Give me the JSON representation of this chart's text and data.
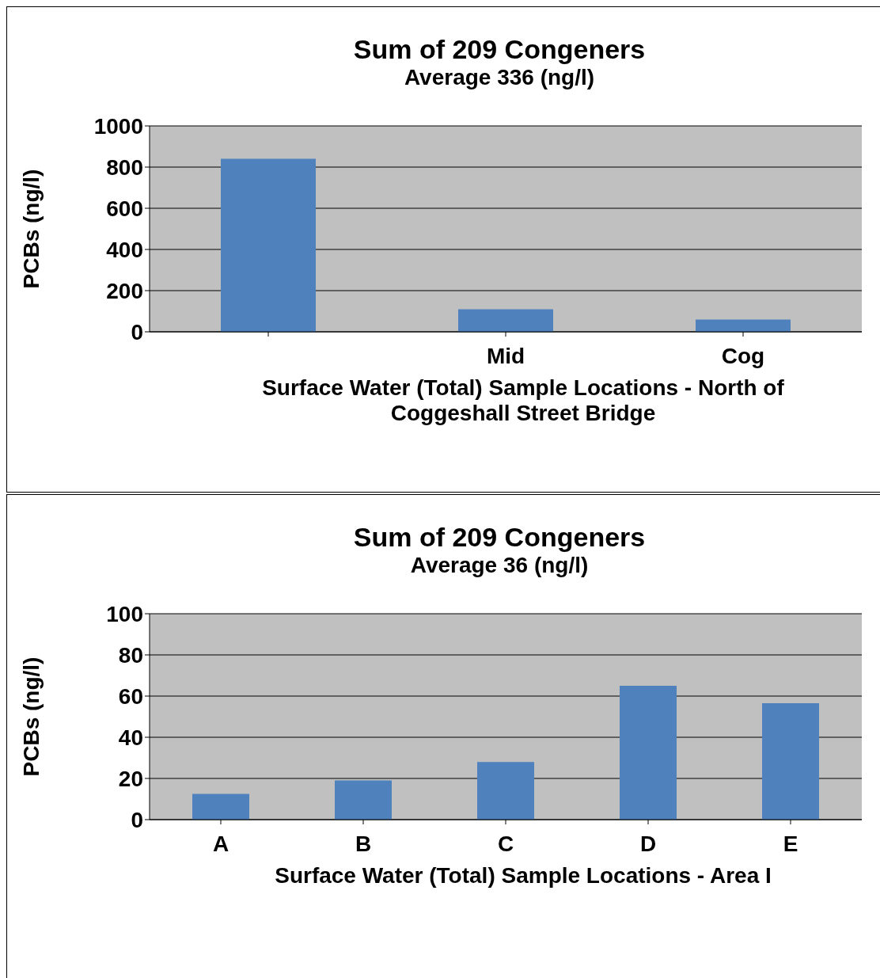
{
  "chart_data": [
    {
      "type": "bar",
      "title": "Sum of 209 Congeners",
      "subtitle": "Average 336 (ng/l)",
      "xlabel": "Surface Water (Total) Sample Locations - North of Coggeshall Street Bridge",
      "ylabel": "PCBs (ng/l)",
      "categories": [
        null,
        "Mid",
        "Cog"
      ],
      "values": [
        840,
        110,
        60
      ],
      "color": "#4f81bd",
      "ylim": [
        0,
        1000
      ],
      "yticks": [
        0,
        200,
        400,
        600,
        800,
        1000
      ],
      "grid": "y",
      "legend": false
    },
    {
      "type": "bar",
      "title": "Sum of 209 Congeners",
      "subtitle": "Average 36 (ng/l)",
      "xlabel": "Surface Water (Total) Sample Locations - Area I",
      "ylabel": "PCBs (ng/l)",
      "categories": [
        "A",
        "B",
        "C",
        "D",
        "E"
      ],
      "values": [
        12.5,
        19,
        28,
        65,
        56.5
      ],
      "color": "#4f81bd",
      "ylim": [
        0,
        100
      ],
      "yticks": [
        0,
        20,
        40,
        60,
        80,
        100
      ],
      "grid": "y",
      "legend": false
    }
  ]
}
